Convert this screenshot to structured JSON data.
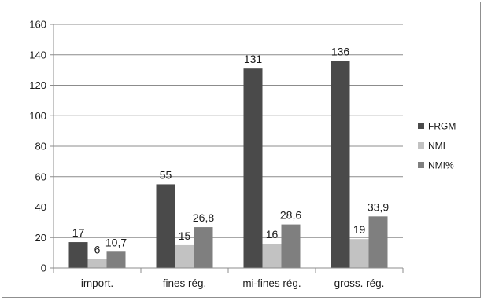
{
  "chart_data": {
    "type": "bar",
    "categories": [
      "import.",
      "fines rég.",
      "mi-fines rég.",
      "gross. rég."
    ],
    "series": [
      {
        "name": "FRGM",
        "values": [
          17,
          55,
          131,
          136
        ],
        "labels": [
          "17",
          "55",
          "131",
          "136"
        ],
        "color": "#4a4a4a"
      },
      {
        "name": "NMI",
        "values": [
          6,
          15,
          16,
          19
        ],
        "labels": [
          "6",
          "15",
          "16",
          "19"
        ],
        "color": "#c2c2c2"
      },
      {
        "name": "NMI%",
        "values": [
          10.7,
          26.8,
          28.6,
          33.9
        ],
        "labels": [
          "10,7",
          "26,8",
          "28,6",
          "33,9"
        ],
        "color": "#7f7f7f"
      }
    ],
    "ylim": [
      0,
      160
    ],
    "yticks": [
      0,
      20,
      40,
      60,
      80,
      100,
      120,
      140,
      160
    ],
    "grid": true,
    "legend_position": "right",
    "title": "",
    "xlabel": "",
    "ylabel": ""
  }
}
